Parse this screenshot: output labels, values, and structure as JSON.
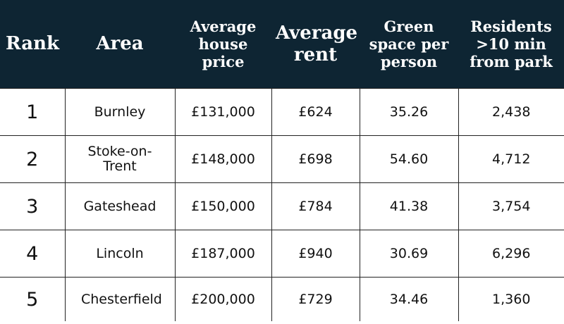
{
  "table": {
    "header": [
      "Rank",
      "Area",
      "Average house price",
      "Average rent",
      "Green space per person",
      "Residents >10 min from park"
    ],
    "rows": [
      [
        "1",
        "Burnley",
        "£131,000",
        "£624",
        "35.26",
        "2,438"
      ],
      [
        "2",
        "Stoke-on-Trent",
        "£148,000",
        "£698",
        "54.60",
        "4,712"
      ],
      [
        "3",
        "Gateshead",
        "£150,000",
        "£784",
        "41.38",
        "3,754"
      ],
      [
        "4",
        "Lincoln",
        "£187,000",
        "£940",
        "30.69",
        "6,296"
      ],
      [
        "5",
        "Chesterfield",
        "£200,000",
        "£729",
        "34.46",
        "1,360"
      ]
    ]
  }
}
